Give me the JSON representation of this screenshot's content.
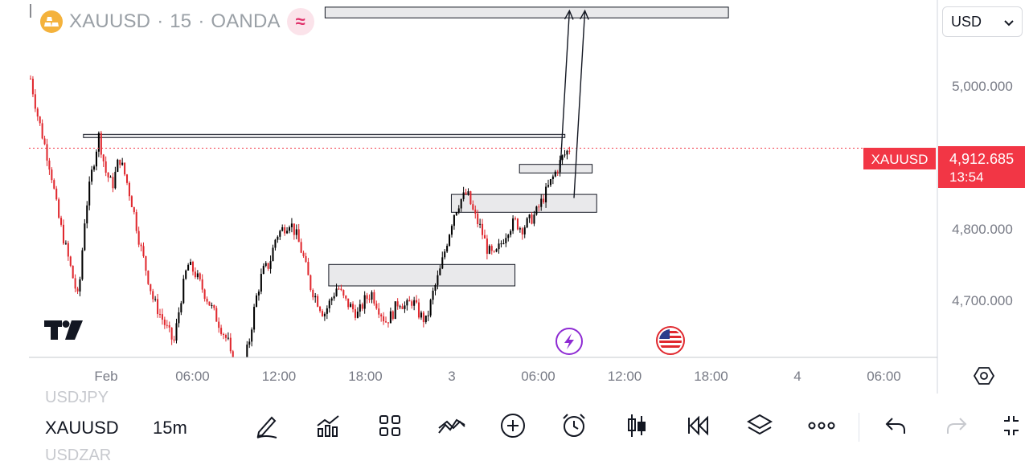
{
  "header": {
    "symbol": "XAUUSD",
    "interval": "15",
    "exchange": "OANDA",
    "separator": "·",
    "symbol_icon": "gold-bars-icon",
    "wave_icon": "≈"
  },
  "currency_select": {
    "value": "USD",
    "icon": "chevron-down-icon"
  },
  "price_label": {
    "symbol": "XAUUSD",
    "price": "4,912.685",
    "countdown": "13:54",
    "color": "#f23645"
  },
  "chart_data": {
    "type": "candlestick",
    "y_axis": {
      "ylim": [
        4620,
        5120
      ],
      "ticks": [
        4700,
        4800,
        5000
      ],
      "tick_labels": [
        "4,700.000",
        "4,800.000",
        "5,000.000"
      ]
    },
    "x_axis": {
      "ticks": [
        "Feb",
        "06:00",
        "12:00",
        "18:00",
        "3",
        "06:00",
        "12:00",
        "18:00",
        "4",
        "06:00"
      ]
    },
    "colors": {
      "up": "#000000",
      "down": "#e0282e"
    },
    "last_price": 4912.685,
    "candle_start_slot": 0,
    "price_path": [
      5010,
      4960,
      4920,
      4880,
      4820,
      4780,
      4740,
      4700,
      4820,
      4880,
      4930,
      4880,
      4860,
      4900,
      4870,
      4830,
      4780,
      4740,
      4700,
      4680,
      4660,
      4640,
      4700,
      4750,
      4740,
      4720,
      4700,
      4680,
      4660,
      4640,
      4580,
      4600,
      4640,
      4700,
      4740,
      4750,
      4790,
      4800,
      4810,
      4790,
      4760,
      4720,
      4700,
      4680,
      4700,
      4720,
      4700,
      4690,
      4680,
      4700,
      4710,
      4690,
      4670,
      4680,
      4700,
      4690,
      4700,
      4680,
      4670,
      4710,
      4740,
      4780,
      4820,
      4840,
      4850,
      4820,
      4800,
      4770,
      4760,
      4780,
      4800,
      4810,
      4800,
      4810,
      4820,
      4840,
      4860,
      4880,
      4900,
      4912
    ],
    "zones": [
      {
        "y_top": 5110,
        "y_bottom": 5095,
        "x_from": 0.326,
        "x_to": 0.77
      },
      {
        "y_top": 4932,
        "y_bottom": 4928,
        "x_from": 0.06,
        "x_to": 0.59
      },
      {
        "y_top": 4890,
        "y_bottom": 4878,
        "x_from": 0.54,
        "x_to": 0.62
      },
      {
        "y_top": 4848,
        "y_bottom": 4823,
        "x_from": 0.465,
        "x_to": 0.625
      },
      {
        "y_top": 4750,
        "y_bottom": 4720,
        "x_from": 0.33,
        "x_to": 0.535
      }
    ],
    "arrows": [
      {
        "from": [
          0.585,
          4885
        ],
        "to": [
          0.595,
          5105
        ]
      },
      {
        "from": [
          0.6,
          4843
        ],
        "to": [
          0.612,
          5105
        ]
      }
    ]
  },
  "events": [
    {
      "icon": "lightning-icon",
      "color": "#8e2bd3"
    },
    {
      "icon": "us-flag-icon",
      "color": "#e0282e"
    }
  ],
  "bottom_bar": {
    "symbols_above": "USDJPY",
    "current_symbol": "XAUUSD",
    "symbols_below": "USDZAR",
    "interval": "15m",
    "tools": [
      "pencil-icon",
      "indicators-icon",
      "layout-grid-icon",
      "compare-icon",
      "add-circle-icon",
      "alarm-clock-icon",
      "candles-icon",
      "replay-icon",
      "layers-icon",
      "more-dots-icon",
      "undo-icon",
      "redo-icon",
      "fullscreen-icon"
    ]
  }
}
